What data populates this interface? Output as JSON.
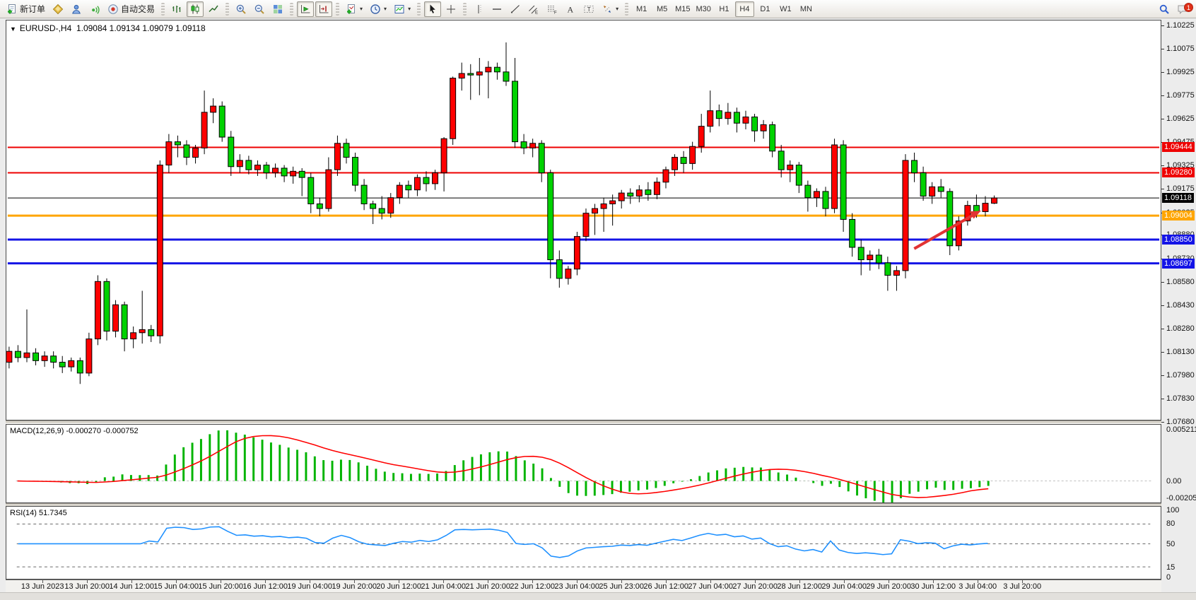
{
  "toolbar": {
    "groups": [
      {
        "items": [
          {
            "name": "new-order-button",
            "icon": "new-order",
            "label": "新订单"
          },
          {
            "name": "styles-button",
            "icon": "bucket"
          },
          {
            "name": "profile-button",
            "icon": "profile"
          },
          {
            "name": "signals-button",
            "icon": "signal"
          },
          {
            "name": "autotrading-button",
            "icon": "autotrade",
            "label": "自动交易"
          }
        ]
      },
      {
        "items": [
          {
            "name": "bar-chart-button",
            "icon": "bars"
          },
          {
            "name": "candle-chart-button",
            "icon": "candles",
            "active": true
          },
          {
            "name": "line-chart-button",
            "icon": "line"
          }
        ]
      },
      {
        "items": [
          {
            "name": "zoom-in-button",
            "icon": "zoom-in"
          },
          {
            "name": "zoom-out-button",
            "icon": "zoom-out"
          },
          {
            "name": "tile-windows-button",
            "icon": "tile"
          }
        ]
      },
      {
        "items": [
          {
            "name": "auto-scroll-button",
            "icon": "autoscroll",
            "active": true
          },
          {
            "name": "chart-shift-button",
            "icon": "shift",
            "active": true
          }
        ]
      },
      {
        "items": [
          {
            "name": "indicators-button",
            "icon": "indicators",
            "dropdown": true
          },
          {
            "name": "periods-button",
            "icon": "clock",
            "dropdown": true
          },
          {
            "name": "templates-button",
            "icon": "template",
            "dropdown": true
          }
        ]
      },
      {
        "items": [
          {
            "name": "cursor-button",
            "icon": "cursor",
            "active": true
          },
          {
            "name": "crosshair-button",
            "icon": "crosshair"
          }
        ]
      },
      {
        "items": [
          {
            "name": "vertical-line-button",
            "icon": "vline"
          },
          {
            "name": "horizontal-line-button",
            "icon": "hline"
          },
          {
            "name": "trendline-button",
            "icon": "trendline"
          },
          {
            "name": "equidistant-channel-button",
            "icon": "channel"
          },
          {
            "name": "fibonacci-button",
            "icon": "fibonacci"
          },
          {
            "name": "text-button",
            "icon": "text"
          },
          {
            "name": "text-label-button",
            "icon": "label"
          },
          {
            "name": "arrows-tool-button",
            "icon": "arrows",
            "dropdown": true
          }
        ]
      },
      {
        "items": [
          {
            "name": "timeframe-m1",
            "tf": true,
            "label": "M1"
          },
          {
            "name": "timeframe-m5",
            "tf": true,
            "label": "M5"
          },
          {
            "name": "timeframe-m15",
            "tf": true,
            "label": "M15"
          },
          {
            "name": "timeframe-m30",
            "tf": true,
            "label": "M30"
          },
          {
            "name": "timeframe-h1",
            "tf": true,
            "label": "H1"
          },
          {
            "name": "timeframe-h4",
            "tf": true,
            "label": "H4",
            "active": true
          },
          {
            "name": "timeframe-d1",
            "tf": true,
            "label": "D1"
          },
          {
            "name": "timeframe-w1",
            "tf": true,
            "label": "W1"
          },
          {
            "name": "timeframe-mn",
            "tf": true,
            "label": "MN"
          }
        ]
      }
    ],
    "right": [
      {
        "name": "search-button",
        "icon": "search"
      },
      {
        "name": "notifications-button",
        "icon": "chat",
        "badge": "1"
      }
    ]
  },
  "chart": {
    "title": {
      "symbol": "EURUSD-,H4",
      "open": "1.09084",
      "high": "1.09134",
      "low": "1.09079",
      "close": "1.09118"
    },
    "price_axis": {
      "ticks": [
        "1.10225",
        "1.10075",
        "1.09925",
        "1.09775",
        "1.09625",
        "1.09475",
        "1.09325",
        "1.09175",
        "1.09025",
        "1.08880",
        "1.08730",
        "1.08580",
        "1.08430",
        "1.08280",
        "1.08130",
        "1.07980",
        "1.07830",
        "1.07680"
      ]
    },
    "levels": [
      {
        "price": 1.09444,
        "label": "1.09444",
        "color": "#ee0000",
        "width": 2
      },
      {
        "price": 1.0928,
        "label": "1.09280",
        "color": "#ee0000",
        "width": 2
      },
      {
        "price": 1.09118,
        "label": "1.09118",
        "color": "#000000",
        "width": 1
      },
      {
        "price": 1.09004,
        "label": "1.09004",
        "color": "#ffa500",
        "width": 3
      },
      {
        "price": 1.0885,
        "label": "1.08850",
        "color": "#1414e6",
        "width": 3
      },
      {
        "price": 1.08697,
        "label": "1.08697",
        "color": "#1414e6",
        "width": 3
      }
    ],
    "candles": [
      [
        1.0806,
        1.0816,
        1.0802,
        1.0813
      ],
      [
        1.0813,
        1.0817,
        1.0806,
        1.0809
      ],
      [
        1.0809,
        1.084,
        1.0806,
        1.0812
      ],
      [
        1.0812,
        1.0815,
        1.0804,
        1.0807
      ],
      [
        1.0807,
        1.0813,
        1.0803,
        1.081
      ],
      [
        1.081,
        1.0813,
        1.0802,
        1.0806
      ],
      [
        1.0806,
        1.081,
        1.0799,
        1.0803
      ],
      [
        1.0803,
        1.0809,
        1.08,
        1.0807
      ],
      [
        1.0807,
        1.0809,
        1.0792,
        1.0799
      ],
      [
        1.0799,
        1.0825,
        1.0797,
        1.0821
      ],
      [
        1.0821,
        1.0862,
        1.0817,
        1.0858
      ],
      [
        1.0858,
        1.086,
        1.082,
        1.0826
      ],
      [
        1.0826,
        1.0846,
        1.0822,
        1.0843
      ],
      [
        1.0843,
        1.0845,
        1.0813,
        1.0821
      ],
      [
        1.0821,
        1.0829,
        1.0815,
        1.0825
      ],
      [
        1.0825,
        1.0852,
        1.0818,
        1.0827
      ],
      [
        1.0827,
        1.083,
        1.0819,
        1.0823
      ],
      [
        1.0823,
        1.0936,
        1.0818,
        1.0933
      ],
      [
        1.0933,
        1.0953,
        1.0928,
        1.0948
      ],
      [
        1.0948,
        1.0952,
        1.0938,
        1.0946
      ],
      [
        1.0946,
        1.0949,
        1.0933,
        1.0938
      ],
      [
        1.0938,
        1.0946,
        1.0934,
        1.0944
      ],
      [
        1.0944,
        1.0981,
        1.094,
        1.0967
      ],
      [
        1.0967,
        1.0976,
        1.096,
        1.0971
      ],
      [
        1.0971,
        1.0974,
        1.0948,
        1.0951
      ],
      [
        1.0951,
        1.0955,
        1.0926,
        1.0932
      ],
      [
        1.0932,
        1.094,
        1.0928,
        1.0936
      ],
      [
        1.0936,
        1.0939,
        1.0927,
        1.093
      ],
      [
        1.093,
        1.0936,
        1.0926,
        1.0933
      ],
      [
        1.0933,
        1.0935,
        1.0924,
        1.0928
      ],
      [
        1.0928,
        1.0934,
        1.0925,
        1.0931
      ],
      [
        1.0931,
        1.0933,
        1.0922,
        1.0926
      ],
      [
        1.0926,
        1.0932,
        1.0921,
        1.0929
      ],
      [
        1.0929,
        1.0931,
        1.0913,
        1.0925
      ],
      [
        1.0925,
        1.0928,
        1.0902,
        1.0908
      ],
      [
        1.0908,
        1.0912,
        1.09,
        1.0905
      ],
      [
        1.0905,
        1.0938,
        1.0903,
        1.093
      ],
      [
        1.093,
        1.0952,
        1.0926,
        1.0947
      ],
      [
        1.0947,
        1.095,
        1.0934,
        1.0938
      ],
      [
        1.0938,
        1.0941,
        1.0916,
        1.092
      ],
      [
        1.092,
        1.0924,
        1.0904,
        1.0908
      ],
      [
        1.0908,
        1.091,
        1.0895,
        1.0905
      ],
      [
        1.0905,
        1.0913,
        1.0898,
        1.0902
      ],
      [
        1.0902,
        1.0915,
        1.0899,
        1.0912
      ],
      [
        1.0912,
        1.0922,
        1.0908,
        1.092
      ],
      [
        1.092,
        1.0923,
        1.0912,
        1.0917
      ],
      [
        1.0917,
        1.0927,
        1.0913,
        1.0925
      ],
      [
        1.0925,
        1.0929,
        1.0916,
        1.0921
      ],
      [
        1.0921,
        1.093,
        1.0917,
        1.0928
      ],
      [
        1.0928,
        1.0951,
        1.0916,
        1.095
      ],
      [
        1.095,
        1.099,
        1.0946,
        1.0989
      ],
      [
        1.0989,
        1.0999,
        1.0981,
        1.0992
      ],
      [
        1.0992,
        1.0998,
        1.0975,
        1.0991
      ],
      [
        1.0991,
        1.1002,
        1.0978,
        1.0993
      ],
      [
        1.0993,
        1.1,
        1.0976,
        1.0996
      ],
      [
        1.0996,
        1.0999,
        1.0988,
        1.0993
      ],
      [
        1.0993,
        1.1012,
        1.0984,
        1.0987
      ],
      [
        1.0987,
        1.1002,
        1.0944,
        1.0948
      ],
      [
        1.0948,
        1.0953,
        1.094,
        1.0944
      ],
      [
        1.0944,
        1.095,
        1.0938,
        1.0947
      ],
      [
        1.0947,
        1.0949,
        1.0922,
        1.0928
      ],
      [
        1.0928,
        1.093,
        1.086,
        1.0872
      ],
      [
        1.0872,
        1.0878,
        1.0854,
        1.086
      ],
      [
        1.086,
        1.0868,
        1.0856,
        1.0866
      ],
      [
        1.0866,
        1.089,
        1.0862,
        1.0887
      ],
      [
        1.0887,
        1.0905,
        1.0884,
        1.0902
      ],
      [
        1.0902,
        1.0908,
        1.0888,
        1.0905
      ],
      [
        1.0905,
        1.0912,
        1.089,
        1.0908
      ],
      [
        1.0908,
        1.0914,
        1.0894,
        1.091
      ],
      [
        1.091,
        1.0917,
        1.0905,
        1.0915
      ],
      [
        1.0915,
        1.0918,
        1.0908,
        1.0913
      ],
      [
        1.0913,
        1.092,
        1.0909,
        1.0917
      ],
      [
        1.0917,
        1.0922,
        1.091,
        1.0914
      ],
      [
        1.0914,
        1.0925,
        1.0911,
        1.0922
      ],
      [
        1.0922,
        1.0932,
        1.0918,
        1.093
      ],
      [
        1.093,
        1.094,
        1.0926,
        1.0938
      ],
      [
        1.0938,
        1.0942,
        1.0928,
        1.0934
      ],
      [
        1.0934,
        1.0948,
        1.093,
        1.0945
      ],
      [
        1.0945,
        1.0966,
        1.0941,
        1.0958
      ],
      [
        1.0958,
        1.0981,
        1.0954,
        1.0968
      ],
      [
        1.0968,
        1.0972,
        1.0958,
        1.0963
      ],
      [
        1.0963,
        1.0973,
        1.0959,
        1.0967
      ],
      [
        1.0967,
        1.097,
        1.0954,
        1.096
      ],
      [
        1.096,
        1.0968,
        1.0956,
        1.0964
      ],
      [
        1.0964,
        1.0966,
        1.0948,
        1.0955
      ],
      [
        1.0955,
        1.0962,
        1.095,
        1.0959
      ],
      [
        1.0959,
        1.0961,
        1.0938,
        1.0942
      ],
      [
        1.0942,
        1.0946,
        1.0925,
        1.093
      ],
      [
        1.093,
        1.0936,
        1.0922,
        1.0933
      ],
      [
        1.0933,
        1.0935,
        1.0915,
        1.092
      ],
      [
        1.092,
        1.0923,
        1.0903,
        1.0912
      ],
      [
        1.0912,
        1.0918,
        1.0906,
        1.0916
      ],
      [
        1.0916,
        1.0919,
        1.09,
        1.0905
      ],
      [
        1.0905,
        1.095,
        1.0902,
        1.0946
      ],
      [
        1.0946,
        1.0949,
        1.089,
        1.0898
      ],
      [
        1.0898,
        1.0902,
        1.0874,
        1.088
      ],
      [
        1.088,
        1.0885,
        1.0862,
        1.0872
      ],
      [
        1.0872,
        1.0878,
        1.0865,
        1.0875
      ],
      [
        1.0875,
        1.0879,
        1.0866,
        1.087
      ],
      [
        1.087,
        1.0874,
        1.0852,
        1.0862
      ],
      [
        1.0862,
        1.0868,
        1.0852,
        1.0865
      ],
      [
        1.0865,
        1.094,
        1.086,
        1.0936
      ],
      [
        1.0936,
        1.0941,
        1.0922,
        1.0928
      ],
      [
        1.0928,
        1.0932,
        1.091,
        1.0913
      ],
      [
        1.0913,
        1.0922,
        1.0908,
        1.0919
      ],
      [
        1.0919,
        1.0924,
        1.0912,
        1.0916
      ],
      [
        1.0916,
        1.0918,
        1.0875,
        1.0881
      ],
      [
        1.0881,
        1.09,
        1.0878,
        1.0897
      ],
      [
        1.0897,
        1.091,
        1.0894,
        1.0907
      ],
      [
        1.0907,
        1.0914,
        1.0899,
        1.0903
      ],
      [
        1.0903,
        1.0913,
        1.09,
        1.09084
      ],
      [
        1.09084,
        1.09134,
        1.09079,
        1.09118
      ]
    ]
  },
  "macd": {
    "name": "MACD(12,26,9)",
    "value_main": "-0.000270",
    "value_signal": "-0.000752",
    "axis": [
      "0.005211",
      "0.00",
      "-0.00205"
    ]
  },
  "rsi": {
    "name": "RSI(14)",
    "value": "51.7345",
    "axis": [
      "100",
      "80",
      "50",
      "15",
      "0"
    ],
    "levels": [
      80,
      50,
      15
    ]
  },
  "time_axis": {
    "labels": [
      "13 Jun 2023",
      "13 Jun 20:00",
      "14 Jun 12:00",
      "15 Jun 04:00",
      "15 Jun 20:00",
      "16 Jun 12:00",
      "19 Jun 04:00",
      "19 Jun 20:00",
      "20 Jun 12:00",
      "21 Jun 04:00",
      "21 Jun 20:00",
      "22 Jun 12:00",
      "23 Jun 04:00",
      "25 Jun 23:00",
      "26 Jun 12:00",
      "27 Jun 04:00",
      "27 Jun 20:00",
      "28 Jun 12:00",
      "29 Jun 04:00",
      "29 Jun 20:00",
      "30 Jun 12:00",
      "3 Jul 04:00",
      "3 Jul 20:00"
    ]
  },
  "annotations": {
    "arrow": {
      "direction": "up-right"
    }
  },
  "colors": {
    "candle_up": "#ff0000",
    "candle_down": "#00d200",
    "candle_outline": "#000000",
    "macd_histogram": "#00b400",
    "macd_signal": "#ff0000",
    "rsi_line": "#1e90ff",
    "arrow": "#e23333"
  }
}
